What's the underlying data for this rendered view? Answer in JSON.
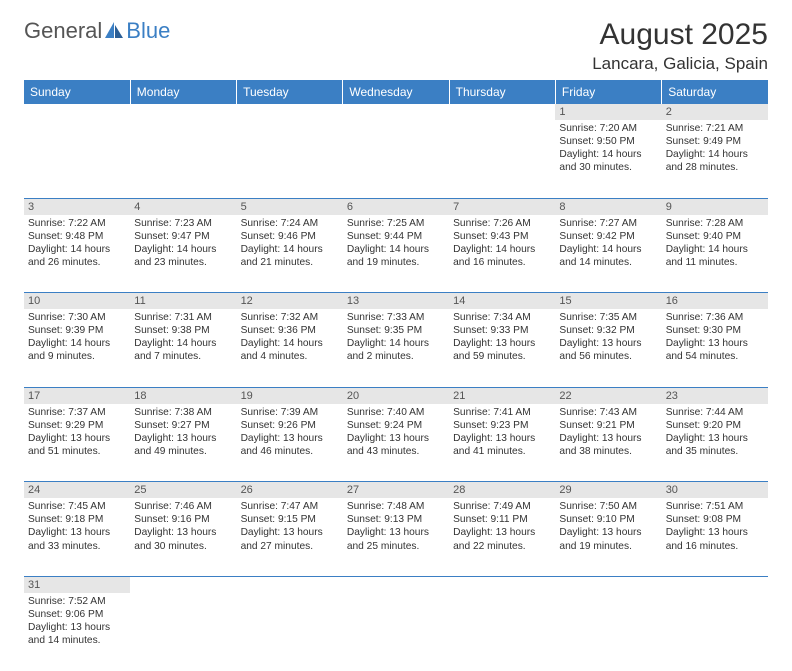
{
  "logo": {
    "part1": "General",
    "part2": "Blue"
  },
  "title": "August 2025",
  "location": "Lancara, Galicia, Spain",
  "colors": {
    "header_bg": "#3b7fc4",
    "header_text": "#ffffff",
    "daynum_bg": "#e6e6e6",
    "rule": "#3b7fc4",
    "page_bg": "#ffffff",
    "text": "#333333",
    "logo_accent": "#3b7fc4"
  },
  "typography": {
    "title_fontsize": 30,
    "location_fontsize": 17,
    "header_fontsize": 12,
    "cell_fontsize": 10.2
  },
  "day_headers": [
    "Sunday",
    "Monday",
    "Tuesday",
    "Wednesday",
    "Thursday",
    "Friday",
    "Saturday"
  ],
  "weeks": [
    [
      null,
      null,
      null,
      null,
      null,
      {
        "n": "1",
        "sunrise": "Sunrise: 7:20 AM",
        "sunset": "Sunset: 9:50 PM",
        "daylight": "Daylight: 14 hours and 30 minutes."
      },
      {
        "n": "2",
        "sunrise": "Sunrise: 7:21 AM",
        "sunset": "Sunset: 9:49 PM",
        "daylight": "Daylight: 14 hours and 28 minutes."
      }
    ],
    [
      {
        "n": "3",
        "sunrise": "Sunrise: 7:22 AM",
        "sunset": "Sunset: 9:48 PM",
        "daylight": "Daylight: 14 hours and 26 minutes."
      },
      {
        "n": "4",
        "sunrise": "Sunrise: 7:23 AM",
        "sunset": "Sunset: 9:47 PM",
        "daylight": "Daylight: 14 hours and 23 minutes."
      },
      {
        "n": "5",
        "sunrise": "Sunrise: 7:24 AM",
        "sunset": "Sunset: 9:46 PM",
        "daylight": "Daylight: 14 hours and 21 minutes."
      },
      {
        "n": "6",
        "sunrise": "Sunrise: 7:25 AM",
        "sunset": "Sunset: 9:44 PM",
        "daylight": "Daylight: 14 hours and 19 minutes."
      },
      {
        "n": "7",
        "sunrise": "Sunrise: 7:26 AM",
        "sunset": "Sunset: 9:43 PM",
        "daylight": "Daylight: 14 hours and 16 minutes."
      },
      {
        "n": "8",
        "sunrise": "Sunrise: 7:27 AM",
        "sunset": "Sunset: 9:42 PM",
        "daylight": "Daylight: 14 hours and 14 minutes."
      },
      {
        "n": "9",
        "sunrise": "Sunrise: 7:28 AM",
        "sunset": "Sunset: 9:40 PM",
        "daylight": "Daylight: 14 hours and 11 minutes."
      }
    ],
    [
      {
        "n": "10",
        "sunrise": "Sunrise: 7:30 AM",
        "sunset": "Sunset: 9:39 PM",
        "daylight": "Daylight: 14 hours and 9 minutes."
      },
      {
        "n": "11",
        "sunrise": "Sunrise: 7:31 AM",
        "sunset": "Sunset: 9:38 PM",
        "daylight": "Daylight: 14 hours and 7 minutes."
      },
      {
        "n": "12",
        "sunrise": "Sunrise: 7:32 AM",
        "sunset": "Sunset: 9:36 PM",
        "daylight": "Daylight: 14 hours and 4 minutes."
      },
      {
        "n": "13",
        "sunrise": "Sunrise: 7:33 AM",
        "sunset": "Sunset: 9:35 PM",
        "daylight": "Daylight: 14 hours and 2 minutes."
      },
      {
        "n": "14",
        "sunrise": "Sunrise: 7:34 AM",
        "sunset": "Sunset: 9:33 PM",
        "daylight": "Daylight: 13 hours and 59 minutes."
      },
      {
        "n": "15",
        "sunrise": "Sunrise: 7:35 AM",
        "sunset": "Sunset: 9:32 PM",
        "daylight": "Daylight: 13 hours and 56 minutes."
      },
      {
        "n": "16",
        "sunrise": "Sunrise: 7:36 AM",
        "sunset": "Sunset: 9:30 PM",
        "daylight": "Daylight: 13 hours and 54 minutes."
      }
    ],
    [
      {
        "n": "17",
        "sunrise": "Sunrise: 7:37 AM",
        "sunset": "Sunset: 9:29 PM",
        "daylight": "Daylight: 13 hours and 51 minutes."
      },
      {
        "n": "18",
        "sunrise": "Sunrise: 7:38 AM",
        "sunset": "Sunset: 9:27 PM",
        "daylight": "Daylight: 13 hours and 49 minutes."
      },
      {
        "n": "19",
        "sunrise": "Sunrise: 7:39 AM",
        "sunset": "Sunset: 9:26 PM",
        "daylight": "Daylight: 13 hours and 46 minutes."
      },
      {
        "n": "20",
        "sunrise": "Sunrise: 7:40 AM",
        "sunset": "Sunset: 9:24 PM",
        "daylight": "Daylight: 13 hours and 43 minutes."
      },
      {
        "n": "21",
        "sunrise": "Sunrise: 7:41 AM",
        "sunset": "Sunset: 9:23 PM",
        "daylight": "Daylight: 13 hours and 41 minutes."
      },
      {
        "n": "22",
        "sunrise": "Sunrise: 7:43 AM",
        "sunset": "Sunset: 9:21 PM",
        "daylight": "Daylight: 13 hours and 38 minutes."
      },
      {
        "n": "23",
        "sunrise": "Sunrise: 7:44 AM",
        "sunset": "Sunset: 9:20 PM",
        "daylight": "Daylight: 13 hours and 35 minutes."
      }
    ],
    [
      {
        "n": "24",
        "sunrise": "Sunrise: 7:45 AM",
        "sunset": "Sunset: 9:18 PM",
        "daylight": "Daylight: 13 hours and 33 minutes."
      },
      {
        "n": "25",
        "sunrise": "Sunrise: 7:46 AM",
        "sunset": "Sunset: 9:16 PM",
        "daylight": "Daylight: 13 hours and 30 minutes."
      },
      {
        "n": "26",
        "sunrise": "Sunrise: 7:47 AM",
        "sunset": "Sunset: 9:15 PM",
        "daylight": "Daylight: 13 hours and 27 minutes."
      },
      {
        "n": "27",
        "sunrise": "Sunrise: 7:48 AM",
        "sunset": "Sunset: 9:13 PM",
        "daylight": "Daylight: 13 hours and 25 minutes."
      },
      {
        "n": "28",
        "sunrise": "Sunrise: 7:49 AM",
        "sunset": "Sunset: 9:11 PM",
        "daylight": "Daylight: 13 hours and 22 minutes."
      },
      {
        "n": "29",
        "sunrise": "Sunrise: 7:50 AM",
        "sunset": "Sunset: 9:10 PM",
        "daylight": "Daylight: 13 hours and 19 minutes."
      },
      {
        "n": "30",
        "sunrise": "Sunrise: 7:51 AM",
        "sunset": "Sunset: 9:08 PM",
        "daylight": "Daylight: 13 hours and 16 minutes."
      }
    ],
    [
      {
        "n": "31",
        "sunrise": "Sunrise: 7:52 AM",
        "sunset": "Sunset: 9:06 PM",
        "daylight": "Daylight: 13 hours and 14 minutes."
      },
      null,
      null,
      null,
      null,
      null,
      null
    ]
  ]
}
